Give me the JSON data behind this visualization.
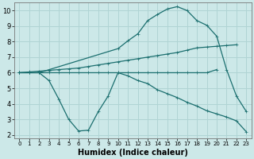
{
  "xlabel": "Humidex (Indice chaleur)",
  "xlim": [
    -0.5,
    23.5
  ],
  "ylim": [
    1.8,
    10.5
  ],
  "yticks": [
    2,
    3,
    4,
    5,
    6,
    7,
    8,
    9,
    10
  ],
  "xticks": [
    0,
    1,
    2,
    3,
    4,
    5,
    6,
    7,
    8,
    9,
    10,
    11,
    12,
    13,
    14,
    15,
    16,
    17,
    18,
    19,
    20,
    21,
    22,
    23
  ],
  "bg_color": "#cce8e8",
  "grid_color": "#b0d4d4",
  "line_color": "#1a6e6e",
  "line_flat": {
    "x": [
      0,
      1,
      2,
      3,
      4,
      5,
      6,
      7,
      8,
      9,
      10,
      11,
      12,
      13,
      14,
      15,
      16,
      17,
      18,
      19,
      20
    ],
    "y": [
      6.0,
      6.0,
      6.0,
      6.0,
      6.0,
      6.0,
      6.0,
      6.0,
      6.0,
      6.0,
      6.0,
      6.0,
      6.0,
      6.0,
      6.0,
      6.0,
      6.0,
      6.0,
      6.0,
      6.0,
      6.2
    ]
  },
  "line_rise": {
    "x": [
      0,
      1,
      2,
      3,
      4,
      5,
      6,
      7,
      8,
      9,
      10,
      11,
      12,
      13,
      14,
      15,
      16,
      17,
      18,
      19,
      20,
      21,
      22
    ],
    "y": [
      6.0,
      6.05,
      6.1,
      6.15,
      6.2,
      6.25,
      6.3,
      6.4,
      6.5,
      6.6,
      6.7,
      6.8,
      6.9,
      7.0,
      7.1,
      7.2,
      7.3,
      7.45,
      7.6,
      7.65,
      7.7,
      7.75,
      7.8
    ]
  },
  "line_bell": {
    "x": [
      0,
      1,
      2,
      10,
      11,
      12,
      13,
      14,
      15,
      16,
      17,
      18,
      19,
      20,
      21,
      22,
      23
    ],
    "y": [
      6.0,
      6.0,
      6.0,
      7.55,
      8.05,
      8.5,
      9.35,
      9.75,
      10.1,
      10.25,
      10.0,
      9.35,
      9.05,
      8.35,
      6.2,
      4.5,
      3.5
    ]
  },
  "line_dip": {
    "x": [
      0,
      1,
      2,
      3,
      4,
      5,
      6,
      7,
      8,
      9,
      10,
      11,
      12,
      13,
      14,
      15,
      16,
      17,
      18,
      19,
      20,
      21,
      22,
      23
    ],
    "y": [
      6.0,
      6.0,
      6.0,
      5.5,
      4.3,
      3.0,
      2.25,
      2.3,
      3.5,
      4.5,
      6.0,
      5.8,
      5.5,
      5.3,
      4.9,
      4.65,
      4.4,
      4.1,
      3.85,
      3.55,
      3.35,
      3.15,
      2.9,
      2.2
    ]
  }
}
